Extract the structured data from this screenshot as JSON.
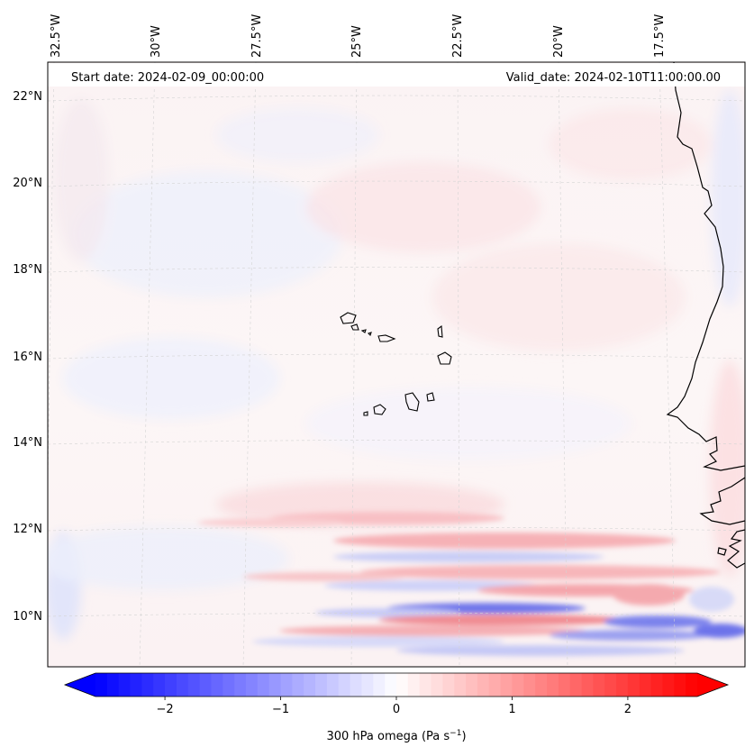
{
  "header": {
    "start_date": "Start date: 2024-02-09_00:00:00",
    "valid_date": "Valid_date: 2024-02-10T11:00:00.00"
  },
  "lon_labels": [
    "32.5°W",
    "30°W",
    "27.5°W",
    "25°W",
    "22.5°W",
    "20°W",
    "17.5°W"
  ],
  "lat_labels": [
    "22°N",
    "20°N",
    "18°N",
    "16°N",
    "14°N",
    "12°N",
    "10°N"
  ],
  "colorbar": {
    "label": "300 hPa omega (Pa s",
    "label_sup": "−1",
    "label_end": ")",
    "ticks": [
      "−2",
      "−1",
      "0",
      "1",
      "2"
    ],
    "tick_values": [
      -2,
      -1,
      0,
      1,
      2
    ],
    "range": [
      -2.6,
      2.6
    ],
    "low_color": "#0000ff",
    "mid_color": "#ffffff",
    "high_color": "#ff0000"
  },
  "map": {
    "variable": "omega",
    "level_hpa": 300,
    "coastline_color": "#000000",
    "gridline_color": "#cccccc"
  }
}
